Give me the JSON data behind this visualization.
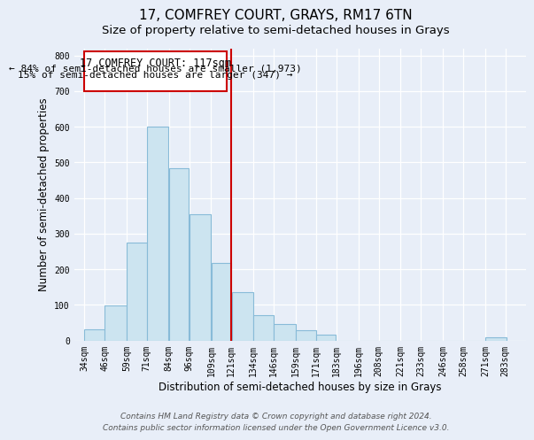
{
  "title": "17, COMFREY COURT, GRAYS, RM17 6TN",
  "subtitle": "Size of property relative to semi-detached houses in Grays",
  "xlabel": "Distribution of semi-detached houses by size in Grays",
  "ylabel": "Number of semi-detached properties",
  "bar_left_edges": [
    34,
    46,
    59,
    71,
    84,
    96,
    109,
    121,
    134,
    146,
    159,
    171,
    183,
    196,
    208,
    221,
    233,
    246,
    258,
    271
  ],
  "bar_heights": [
    30,
    97,
    275,
    600,
    483,
    354,
    218,
    135,
    70,
    46,
    28,
    17,
    0,
    0,
    0,
    0,
    0,
    0,
    0,
    8
  ],
  "tick_labels": [
    "34sqm",
    "46sqm",
    "59sqm",
    "71sqm",
    "84sqm",
    "96sqm",
    "109sqm",
    "121sqm",
    "134sqm",
    "146sqm",
    "159sqm",
    "171sqm",
    "183sqm",
    "196sqm",
    "208sqm",
    "221sqm",
    "233sqm",
    "246sqm",
    "258sqm",
    "271sqm",
    "283sqm"
  ],
  "tick_positions": [
    34,
    46,
    59,
    71,
    84,
    96,
    109,
    121,
    134,
    146,
    159,
    171,
    183,
    196,
    208,
    221,
    233,
    246,
    258,
    271,
    283
  ],
  "bar_color": "#cce4f0",
  "bar_edge_color": "#88bbd8",
  "vline_x": 121,
  "vline_color": "#cc0000",
  "annotation_title": "17 COMFREY COURT: 117sqm",
  "annotation_line1": "← 84% of semi-detached houses are smaller (1,973)",
  "annotation_line2": "15% of semi-detached houses are larger (347) →",
  "box_edge_color": "#cc0000",
  "ylim": [
    0,
    820
  ],
  "xlim": [
    28,
    295
  ],
  "footer1": "Contains HM Land Registry data © Crown copyright and database right 2024.",
  "footer2": "Contains public sector information licensed under the Open Government Licence v3.0.",
  "background_color": "#e8eef8",
  "grid_color": "#ffffff",
  "title_fontsize": 11,
  "subtitle_fontsize": 9.5,
  "axis_label_fontsize": 8.5,
  "tick_fontsize": 7,
  "annotation_title_fontsize": 8.5,
  "annotation_body_fontsize": 8,
  "footer_fontsize": 6.5
}
